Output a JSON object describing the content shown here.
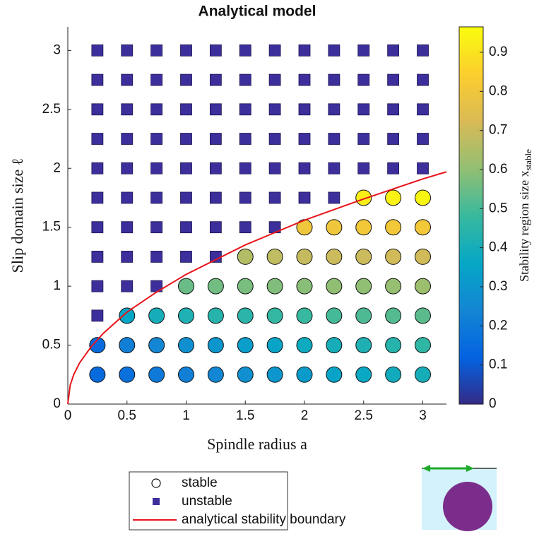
{
  "chart_data": {
    "type": "scatter",
    "title": "Analytical model",
    "xlabel": "Spindle radius a",
    "ylabel": "Slip domain size ℓ",
    "xlim": [
      0,
      3.2
    ],
    "ylim": [
      0,
      3.2
    ],
    "xticks": [
      0,
      0.5,
      1,
      1.5,
      2,
      2.5,
      3
    ],
    "yticks": [
      0,
      0.5,
      1,
      1.5,
      2,
      2.5,
      3
    ],
    "legend": "south-outside",
    "colorbar": {
      "colormap": "parula",
      "clim": [
        0,
        0.965
      ],
      "ticks": [
        0,
        0.1,
        0.2,
        0.3,
        0.4,
        0.5,
        0.6,
        0.7,
        0.8,
        0.9
      ],
      "label": "Stability region size x",
      "label_subscript": "stable"
    },
    "series": [
      {
        "name": "stable",
        "marker": "circle",
        "x": [
          0.25,
          0.25,
          0.5,
          0.5,
          0.5,
          0.75,
          0.75,
          0.75,
          1,
          1,
          1,
          1,
          1.25,
          1.25,
          1.25,
          1.25,
          1.5,
          1.5,
          1.5,
          1.5,
          1.5,
          1.75,
          1.75,
          1.75,
          1.75,
          1.75,
          2,
          2,
          2,
          2,
          2,
          2,
          2.25,
          2.25,
          2.25,
          2.25,
          2.25,
          2.25,
          2.5,
          2.5,
          2.5,
          2.5,
          2.5,
          2.5,
          2.5,
          2.75,
          2.75,
          2.75,
          2.75,
          2.75,
          2.75,
          2.75,
          3,
          3,
          3,
          3,
          3,
          3,
          3
        ],
        "y": [
          0.25,
          0.5,
          0.25,
          0.5,
          0.75,
          0.25,
          0.5,
          0.75,
          0.25,
          0.5,
          0.75,
          1,
          0.25,
          0.5,
          0.75,
          1,
          0.25,
          0.5,
          0.75,
          1,
          1.25,
          0.25,
          0.5,
          0.75,
          1,
          1.25,
          0.25,
          0.5,
          0.75,
          1,
          1.25,
          1.5,
          0.25,
          0.5,
          0.75,
          1,
          1.25,
          1.5,
          0.25,
          0.5,
          0.75,
          1,
          1.25,
          1.5,
          1.75,
          0.25,
          0.5,
          0.75,
          1,
          1.25,
          1.5,
          1.75,
          0.25,
          0.5,
          0.75,
          1,
          1.25,
          1.5,
          1.75
        ],
        "values": [
          0.15,
          0.15,
          0.17,
          0.22,
          0.36,
          0.2,
          0.25,
          0.4,
          0.22,
          0.28,
          0.42,
          0.55,
          0.25,
          0.3,
          0.44,
          0.56,
          0.28,
          0.33,
          0.45,
          0.57,
          0.66,
          0.3,
          0.35,
          0.47,
          0.58,
          0.68,
          0.32,
          0.38,
          0.48,
          0.59,
          0.69,
          0.8,
          0.35,
          0.4,
          0.5,
          0.6,
          0.7,
          0.8,
          0.37,
          0.42,
          0.51,
          0.6,
          0.7,
          0.81,
          0.93,
          0.39,
          0.44,
          0.52,
          0.61,
          0.71,
          0.81,
          0.94,
          0.4,
          0.46,
          0.53,
          0.62,
          0.71,
          0.81,
          0.95
        ]
      },
      {
        "name": "unstable",
        "marker": "square",
        "color": "#3d2f9b",
        "x": [
          0.25,
          0.25,
          0.25,
          0.25,
          0.25,
          0.25,
          0.25,
          0.25,
          0.25,
          0.25,
          0.5,
          0.5,
          0.5,
          0.5,
          0.5,
          0.5,
          0.5,
          0.5,
          0.5,
          0.75,
          0.75,
          0.75,
          0.75,
          0.75,
          0.75,
          0.75,
          0.75,
          0.75,
          1,
          1,
          1,
          1,
          1,
          1,
          1,
          1,
          1.25,
          1.25,
          1.25,
          1.25,
          1.25,
          1.25,
          1.25,
          1.25,
          1.5,
          1.5,
          1.5,
          1.5,
          1.5,
          1.5,
          1.5,
          1.75,
          1.75,
          1.75,
          1.75,
          1.75,
          1.75,
          1.75,
          2,
          2,
          2,
          2,
          2,
          2,
          2.25,
          2.25,
          2.25,
          2.25,
          2.25,
          2.25,
          2.5,
          2.5,
          2.5,
          2.5,
          2.5,
          2.75,
          2.75,
          2.75,
          2.75,
          2.75,
          3,
          3,
          3,
          3,
          3
        ],
        "y": [
          0.75,
          1,
          1.25,
          1.5,
          1.75,
          2,
          2.25,
          2.5,
          2.75,
          3,
          1,
          1.25,
          1.5,
          1.75,
          2,
          2.25,
          2.5,
          2.75,
          3,
          1,
          1.25,
          1.5,
          1.75,
          2,
          2.25,
          2.5,
          2.75,
          3,
          1.25,
          1.5,
          1.75,
          2,
          2.25,
          2.5,
          2.75,
          3,
          1.25,
          1.5,
          1.75,
          2,
          2.25,
          2.5,
          2.75,
          3,
          1.5,
          1.75,
          2,
          2.25,
          2.5,
          2.75,
          3,
          1.5,
          1.75,
          2,
          2.25,
          2.5,
          2.75,
          3,
          1.75,
          2,
          2.25,
          2.5,
          2.75,
          3,
          1.75,
          2,
          2.25,
          2.5,
          2.75,
          3,
          2,
          2.25,
          2.5,
          2.75,
          3,
          2,
          2.25,
          2.5,
          2.75,
          3,
          2,
          2.25,
          2.5,
          2.75,
          3
        ]
      },
      {
        "name": "analytical stability boundary",
        "marker": "line",
        "color": "#e8141b",
        "x": [
          0,
          0.02,
          0.05,
          0.1,
          0.2,
          0.3,
          0.5,
          0.75,
          1,
          1.5,
          2,
          2.5,
          3,
          3.2
        ],
        "y": [
          0,
          0.16,
          0.25,
          0.35,
          0.49,
          0.6,
          0.78,
          0.95,
          1.1,
          1.35,
          1.56,
          1.74,
          1.91,
          1.97
        ]
      }
    ]
  }
}
